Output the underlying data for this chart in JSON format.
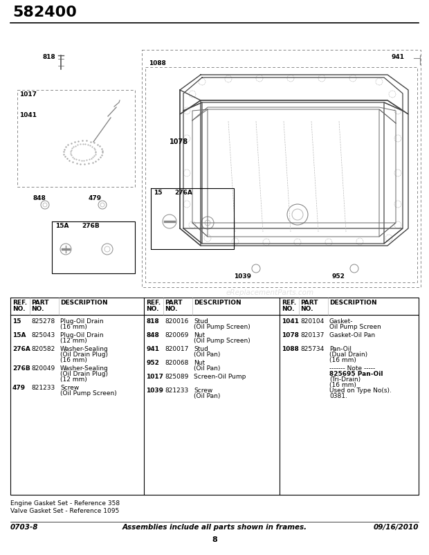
{
  "title": "582400",
  "page_num": "8",
  "footer_left": "0703-8",
  "footer_center": "Assemblies include all parts shown in frames.",
  "footer_date": "09/16/2010",
  "footnotes": [
    "Engine Gasket Set - Reference 358",
    "Valve Gasket Set - Reference 1095"
  ],
  "table_col1": [
    [
      "15",
      "825278",
      "Plug-Oil Drain\n(16 mm)"
    ],
    [
      "15A",
      "825043",
      "Plug-Oil Drain\n(12 mm)"
    ],
    [
      "276A",
      "820582",
      "Washer-Sealing\n(Oil Drain Plug)\n(16 mm)"
    ],
    [
      "276B",
      "820049",
      "Washer-Sealing\n(Oil Drain Plug)\n(12 mm)"
    ],
    [
      "479",
      "821233",
      "Screw\n(Oil Pump Screen)"
    ]
  ],
  "table_col2": [
    [
      "818",
      "820016",
      "Stud\n(Oil Pump Screen)"
    ],
    [
      "848",
      "820069",
      "Nut\n(Oil Pump Screen)"
    ],
    [
      "941",
      "820017",
      "Stud\n(Oil Pan)"
    ],
    [
      "952",
      "820068",
      "Nut\n(Oil Pan)"
    ],
    [
      "1017",
      "825089",
      "Screen-Oil Pump"
    ],
    [
      "1039",
      "821233",
      "Screw\n(Oil Pan)"
    ]
  ],
  "table_col3": [
    [
      "1041",
      "820104",
      "Gasket-\nOil Pump Screen"
    ],
    [
      "1078",
      "820137",
      "Gasket-Oil Pan"
    ],
    [
      "1088",
      "825734",
      "Pan-Oil\n(Dual Drain)\n(16 mm)"
    ],
    [
      "",
      "",
      "------- Note -----\n825695 Pan-Oil\n(Tri-Drain)\n(16 mm)\nUsed on Type No(s).\n0381."
    ]
  ],
  "watermark": "eReplacementParts.com",
  "bg_color": "#ffffff"
}
